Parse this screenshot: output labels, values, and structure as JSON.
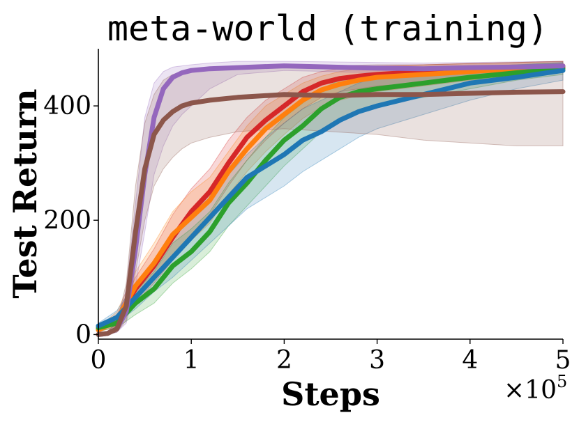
{
  "chart_data": {
    "type": "line",
    "title": "meta-world (training)",
    "xlabel": "Steps",
    "ylabel": "Test Return",
    "x_multiplier": {
      "base": "×10",
      "exponent": "5"
    },
    "xlim": [
      0,
      5
    ],
    "ylim": [
      -8,
      500
    ],
    "xticks": [
      0,
      1,
      2,
      3,
      4,
      5
    ],
    "xtick_labels": [
      "0",
      "1",
      "2",
      "3",
      "4",
      "5"
    ],
    "yticks": [
      0,
      200,
      400
    ],
    "ytick_labels": [
      "0",
      "200",
      "400"
    ],
    "grid": false,
    "legend": "none",
    "series": [
      {
        "color": "#d62728",
        "x": [
          0,
          0.2,
          0.4,
          0.6,
          0.8,
          1.0,
          1.2,
          1.4,
          1.6,
          1.8,
          2.0,
          2.2,
          2.4,
          2.6,
          2.8,
          3.0,
          3.5,
          4.0,
          4.5,
          5.0
        ],
        "y": [
          10,
          25,
          80,
          120,
          170,
          215,
          250,
          300,
          345,
          375,
          400,
          425,
          440,
          448,
          452,
          455,
          460,
          462,
          465,
          468
        ],
        "lower": [
          5,
          15,
          55,
          90,
          130,
          175,
          210,
          260,
          305,
          340,
          370,
          395,
          415,
          425,
          430,
          435,
          440,
          448,
          452,
          458
        ],
        "upper": [
          15,
          35,
          100,
          150,
          210,
          255,
          290,
          340,
          380,
          410,
          430,
          450,
          460,
          465,
          468,
          470,
          472,
          474,
          476,
          478
        ]
      },
      {
        "color": "#ff7f0e",
        "x": [
          0,
          0.2,
          0.4,
          0.6,
          0.8,
          1.0,
          1.2,
          1.4,
          1.6,
          1.8,
          2.0,
          2.2,
          2.4,
          2.6,
          2.8,
          3.0,
          3.5,
          4.0,
          4.5,
          5.0
        ],
        "y": [
          8,
          25,
          85,
          125,
          175,
          205,
          235,
          285,
          325,
          360,
          385,
          410,
          428,
          438,
          445,
          450,
          455,
          460,
          465,
          470
        ],
        "lower": [
          4,
          15,
          60,
          95,
          135,
          165,
          195,
          245,
          285,
          320,
          350,
          378,
          398,
          410,
          418,
          425,
          435,
          445,
          452,
          460
        ],
        "upper": [
          12,
          40,
          110,
          160,
          215,
          250,
          275,
          320,
          365,
          400,
          420,
          440,
          452,
          460,
          465,
          468,
          472,
          474,
          476,
          478
        ]
      },
      {
        "color": "#2ca02c",
        "x": [
          0,
          0.2,
          0.4,
          0.6,
          0.8,
          1.0,
          1.2,
          1.4,
          1.6,
          1.8,
          2.0,
          2.2,
          2.4,
          2.6,
          2.8,
          3.0,
          3.5,
          4.0,
          4.5,
          5.0
        ],
        "y": [
          12,
          20,
          55,
          80,
          120,
          145,
          180,
          230,
          265,
          305,
          340,
          365,
          395,
          415,
          425,
          430,
          440,
          450,
          458,
          465
        ],
        "lower": [
          6,
          12,
          35,
          55,
          90,
          115,
          145,
          190,
          225,
          260,
          295,
          325,
          355,
          375,
          390,
          400,
          415,
          430,
          445,
          455
        ],
        "upper": [
          18,
          30,
          75,
          110,
          160,
          185,
          215,
          265,
          305,
          345,
          380,
          405,
          430,
          445,
          452,
          455,
          462,
          468,
          472,
          475
        ]
      },
      {
        "color": "#1f77b4",
        "x": [
          0,
          0.2,
          0.4,
          0.6,
          0.8,
          1.0,
          1.2,
          1.4,
          1.6,
          1.8,
          2.0,
          2.2,
          2.4,
          2.6,
          2.8,
          3.0,
          3.5,
          4.0,
          4.5,
          5.0
        ],
        "y": [
          15,
          30,
          65,
          100,
          135,
          170,
          205,
          240,
          275,
          295,
          315,
          340,
          355,
          375,
          390,
          400,
          420,
          440,
          450,
          462
        ],
        "lower": [
          10,
          20,
          45,
          75,
          100,
          130,
          160,
          190,
          220,
          240,
          260,
          285,
          305,
          325,
          345,
          360,
          385,
          410,
          430,
          445
        ],
        "upper": [
          20,
          42,
          90,
          130,
          170,
          210,
          245,
          280,
          315,
          345,
          370,
          395,
          410,
          425,
          440,
          450,
          460,
          468,
          472,
          476
        ]
      },
      {
        "color": "#9467bd",
        "x": [
          0,
          0.1,
          0.2,
          0.3,
          0.4,
          0.5,
          0.6,
          0.7,
          0.8,
          0.9,
          1.0,
          1.2,
          1.5,
          2.0,
          2.5,
          3.0,
          3.5,
          4.0,
          4.5,
          5.0
        ],
        "y": [
          0,
          2,
          10,
          40,
          150,
          280,
          380,
          430,
          450,
          458,
          462,
          465,
          467,
          470,
          468,
          466,
          465,
          467,
          468,
          470
        ],
        "lower": [
          0,
          0,
          4,
          20,
          85,
          180,
          280,
          330,
          365,
          385,
          400,
          430,
          455,
          462,
          460,
          458,
          455,
          458,
          460,
          462
        ],
        "upper": [
          2,
          6,
          20,
          80,
          230,
          380,
          440,
          460,
          468,
          470,
          472,
          475,
          478,
          478,
          477,
          476,
          475,
          476,
          477,
          478
        ]
      },
      {
        "color": "#8c564b",
        "x": [
          0,
          0.1,
          0.2,
          0.3,
          0.4,
          0.5,
          0.6,
          0.7,
          0.8,
          0.9,
          1.0,
          1.2,
          1.5,
          2.0,
          2.5,
          3.0,
          3.5,
          4.0,
          4.5,
          5.0
        ],
        "y": [
          0,
          2,
          10,
          50,
          180,
          290,
          350,
          375,
          390,
          400,
          405,
          410,
          415,
          420,
          418,
          420,
          420,
          422,
          424,
          425
        ],
        "lower": [
          0,
          0,
          4,
          25,
          110,
          200,
          260,
          290,
          310,
          325,
          335,
          345,
          355,
          360,
          355,
          350,
          340,
          335,
          330,
          330
        ],
        "upper": [
          2,
          6,
          20,
          90,
          260,
          370,
          420,
          445,
          455,
          460,
          462,
          465,
          468,
          470,
          470,
          472,
          472,
          474,
          476,
          478
        ]
      }
    ]
  }
}
